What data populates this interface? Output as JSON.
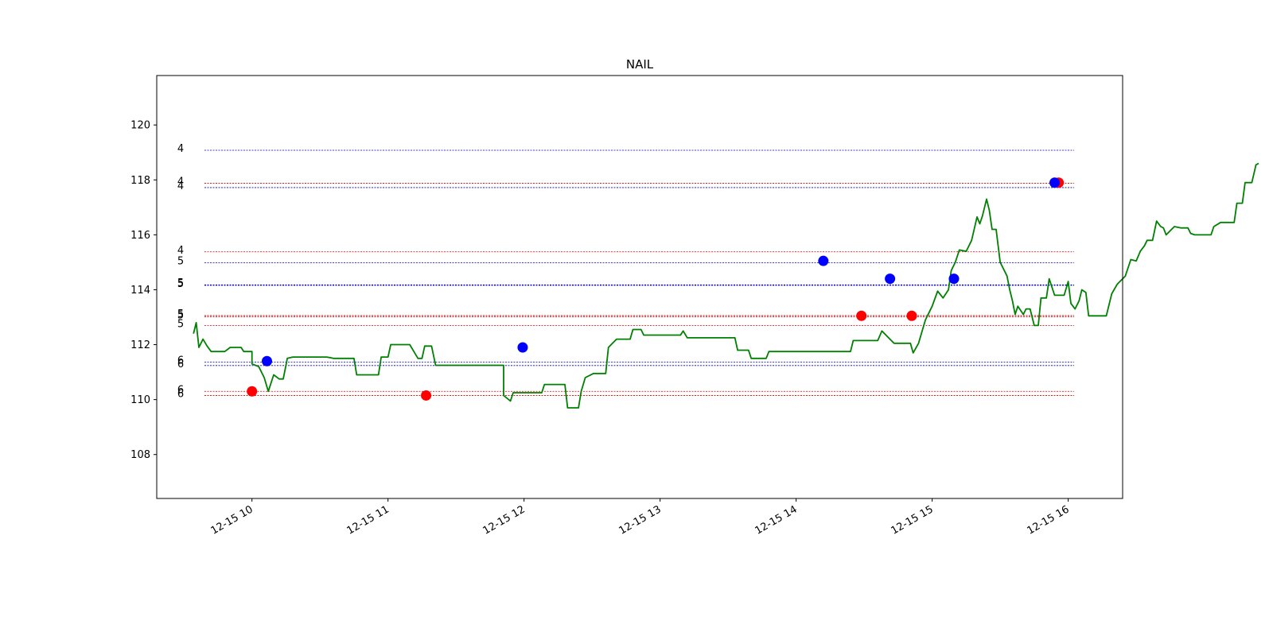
{
  "chart_data": {
    "type": "line",
    "title": "NAIL",
    "xlabel": "",
    "ylabel": "",
    "grid": false,
    "ylim": [
      106.4,
      121.8
    ],
    "xlim_hours": [
      9.3,
      16.4
    ],
    "x_ticks": [
      {
        "hour": 10,
        "label": "12-15 10"
      },
      {
        "hour": 11,
        "label": "12-15 11"
      },
      {
        "hour": 12,
        "label": "12-15 12"
      },
      {
        "hour": 13,
        "label": "12-15 13"
      },
      {
        "hour": 14,
        "label": "12-15 14"
      },
      {
        "hour": 15,
        "label": "12-15 15"
      },
      {
        "hour": 16,
        "label": "12-15 16"
      }
    ],
    "y_ticks": [
      108,
      110,
      112,
      114,
      116,
      118,
      120
    ],
    "price_line": {
      "color": "#008000",
      "points": [
        [
          9.57,
          112.4
        ],
        [
          9.59,
          112.8
        ],
        [
          9.61,
          111.9
        ],
        [
          9.64,
          112.2
        ],
        [
          9.67,
          111.95
        ],
        [
          9.7,
          111.75
        ],
        [
          9.8,
          111.75
        ],
        [
          9.84,
          111.9
        ],
        [
          9.92,
          111.9
        ],
        [
          9.94,
          111.75
        ],
        [
          10.0,
          111.75
        ],
        [
          10.0,
          111.3
        ],
        [
          10.05,
          111.2
        ],
        [
          10.09,
          110.8
        ],
        [
          10.12,
          110.3
        ],
        [
          10.16,
          110.9
        ],
        [
          10.2,
          110.75
        ],
        [
          10.23,
          110.75
        ],
        [
          10.26,
          111.5
        ],
        [
          10.3,
          111.55
        ],
        [
          10.55,
          111.55
        ],
        [
          10.6,
          111.5
        ],
        [
          10.75,
          111.5
        ],
        [
          10.77,
          110.9
        ],
        [
          10.93,
          110.9
        ],
        [
          10.95,
          111.55
        ],
        [
          11.0,
          111.55
        ],
        [
          11.02,
          112.0
        ],
        [
          11.16,
          112.0
        ],
        [
          11.19,
          111.75
        ],
        [
          11.22,
          111.5
        ],
        [
          11.25,
          111.5
        ],
        [
          11.27,
          111.95
        ],
        [
          11.32,
          111.95
        ],
        [
          11.35,
          111.25
        ],
        [
          11.65,
          111.25
        ],
        [
          11.85,
          111.25
        ],
        [
          11.85,
          110.15
        ],
        [
          11.9,
          109.95
        ],
        [
          11.92,
          110.25
        ],
        [
          12.13,
          110.25
        ],
        [
          12.15,
          110.55
        ],
        [
          12.3,
          110.55
        ],
        [
          12.32,
          109.7
        ],
        [
          12.4,
          109.7
        ],
        [
          12.42,
          110.3
        ],
        [
          12.45,
          110.8
        ],
        [
          12.51,
          110.95
        ],
        [
          12.6,
          110.95
        ],
        [
          12.62,
          111.9
        ],
        [
          12.68,
          112.2
        ],
        [
          12.78,
          112.2
        ],
        [
          12.8,
          112.55
        ],
        [
          12.86,
          112.55
        ],
        [
          12.88,
          112.35
        ],
        [
          13.02,
          112.35
        ],
        [
          13.15,
          112.35
        ],
        [
          13.17,
          112.5
        ],
        [
          13.2,
          112.25
        ],
        [
          13.55,
          112.25
        ],
        [
          13.57,
          111.8
        ],
        [
          13.65,
          111.8
        ],
        [
          13.67,
          111.5
        ],
        [
          13.78,
          111.5
        ],
        [
          13.8,
          111.75
        ],
        [
          14.0,
          111.75
        ],
        [
          14.3,
          111.75
        ],
        [
          14.4,
          111.75
        ],
        [
          14.42,
          112.15
        ],
        [
          14.6,
          112.15
        ],
        [
          14.63,
          112.5
        ],
        [
          14.67,
          112.3
        ],
        [
          14.72,
          112.05
        ],
        [
          14.84,
          112.05
        ],
        [
          14.86,
          111.7
        ],
        [
          14.9,
          112.05
        ],
        [
          14.95,
          112.9
        ],
        [
          15.0,
          113.4
        ],
        [
          15.04,
          113.95
        ],
        [
          15.08,
          113.7
        ],
        [
          15.12,
          114.0
        ],
        [
          15.14,
          114.7
        ],
        [
          15.17,
          115.0
        ],
        [
          15.2,
          115.45
        ],
        [
          15.25,
          115.4
        ],
        [
          15.29,
          115.8
        ],
        [
          15.33,
          116.65
        ],
        [
          15.35,
          116.4
        ],
        [
          15.37,
          116.7
        ],
        [
          15.4,
          117.3
        ],
        [
          15.42,
          116.9
        ],
        [
          15.44,
          116.2
        ],
        [
          15.47,
          116.2
        ],
        [
          15.5,
          115.0
        ],
        [
          15.55,
          114.5
        ],
        [
          15.57,
          114.0
        ],
        [
          15.59,
          113.6
        ],
        [
          15.61,
          113.1
        ],
        [
          15.63,
          113.4
        ],
        [
          15.67,
          113.1
        ],
        [
          15.69,
          113.3
        ],
        [
          15.72,
          113.3
        ],
        [
          15.75,
          112.7
        ],
        [
          15.78,
          112.7
        ],
        [
          15.8,
          113.7
        ],
        [
          15.84,
          113.7
        ],
        [
          15.86,
          114.4
        ],
        [
          15.9,
          113.8
        ],
        [
          15.97,
          113.8
        ],
        [
          16.0,
          114.3
        ],
        [
          16.02,
          113.5
        ],
        [
          16.05,
          113.3
        ],
        [
          16.08,
          113.6
        ],
        [
          16.1,
          114.0
        ],
        [
          16.13,
          113.9
        ],
        [
          16.15,
          113.05
        ],
        [
          16.28,
          113.05
        ],
        [
          16.32,
          113.85
        ],
        [
          16.36,
          114.2
        ],
        [
          16.42,
          114.5
        ],
        [
          16.46,
          115.1
        ],
        [
          16.5,
          115.05
        ],
        [
          16.53,
          115.4
        ],
        [
          16.56,
          115.6
        ],
        [
          16.58,
          115.8
        ],
        [
          16.62,
          115.8
        ],
        [
          16.65,
          116.5
        ],
        [
          16.68,
          116.3
        ],
        [
          16.7,
          116.25
        ],
        [
          16.72,
          116.0
        ],
        [
          16.78,
          116.3
        ],
        [
          16.83,
          116.25
        ],
        [
          16.88,
          116.25
        ],
        [
          16.9,
          116.05
        ],
        [
          16.93,
          116.0
        ],
        [
          17.0,
          116.0
        ],
        [
          17.05,
          116.0
        ],
        [
          17.07,
          116.3
        ],
        [
          17.12,
          116.45
        ],
        [
          17.22,
          116.45
        ],
        [
          17.24,
          117.15
        ],
        [
          17.28,
          117.15
        ],
        [
          17.3,
          117.9
        ],
        [
          17.35,
          117.9
        ],
        [
          17.38,
          118.55
        ],
        [
          17.4,
          118.6
        ]
      ]
    },
    "sell_markers": {
      "color": "#ff0000",
      "points": [
        [
          10.0,
          110.3
        ],
        [
          11.28,
          110.15
        ],
        [
          14.48,
          113.05
        ],
        [
          14.85,
          113.05
        ],
        [
          15.93,
          117.9
        ]
      ]
    },
    "buy_markers": {
      "color": "#0000ff",
      "points": [
        [
          10.11,
          111.4
        ],
        [
          11.99,
          111.9
        ],
        [
          14.2,
          115.05
        ],
        [
          14.69,
          114.4
        ],
        [
          15.16,
          114.4
        ],
        [
          15.9,
          117.9
        ]
      ]
    },
    "levels": [
      {
        "y": 119.08,
        "color": "#0000cc",
        "label": "4"
      },
      {
        "y": 117.88,
        "color": "#cc0000",
        "label": "4"
      },
      {
        "y": 117.72,
        "color": "#0000cc",
        "label": "4"
      },
      {
        "y": 115.38,
        "color": "#cc0000",
        "label": "4"
      },
      {
        "y": 114.98,
        "color": "#0000cc",
        "label": "5"
      },
      {
        "y": 114.18,
        "color": "#0000cc",
        "label": "5"
      },
      {
        "y": 114.16,
        "color": "#0000cc",
        "label": "5"
      },
      {
        "y": 113.06,
        "color": "#cc0000",
        "label": "5"
      },
      {
        "y": 113.02,
        "color": "#cc0000",
        "label": "5"
      },
      {
        "y": 112.7,
        "color": "#cc0000",
        "label": "5"
      },
      {
        "y": 111.36,
        "color": "#0000cc",
        "label": "6"
      },
      {
        "y": 111.24,
        "color": "#0000cc",
        "label": "6"
      },
      {
        "y": 110.3,
        "color": "#cc0000",
        "label": "6"
      },
      {
        "y": 110.15,
        "color": "#cc0000",
        "label": "6"
      }
    ]
  }
}
